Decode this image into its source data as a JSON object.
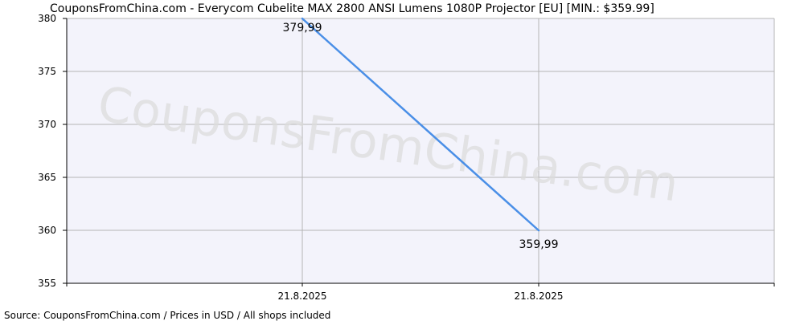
{
  "chart_data": {
    "type": "line",
    "title": "CouponsFromChina.com - Everycom Cubelite MAX 2800 ANSI Lumens 1080P Projector [EU] [MIN.: $359.99]",
    "xlabel": "",
    "ylabel": "",
    "ylim": [
      355,
      380
    ],
    "yticks": [
      355,
      360,
      365,
      370,
      375,
      380
    ],
    "xticks": [
      "21.8.2025",
      "21.8.2025"
    ],
    "grid": true,
    "legend": "none",
    "series": [
      {
        "points": [
          {
            "tick": 0,
            "y": 379.99,
            "label": "379,99"
          },
          {
            "tick": 1,
            "y": 359.99,
            "label": "359,99"
          }
        ]
      }
    ],
    "colors": {
      "line": "#4a8fe7",
      "plot_background": "#f3f3fb",
      "grid": "#b4b4b4",
      "axis": "#000000"
    }
  },
  "watermark": "CouponsFromChina.com",
  "footer": {
    "source": "Source: CouponsFromChina.com / Prices in USD / All shops included"
  }
}
